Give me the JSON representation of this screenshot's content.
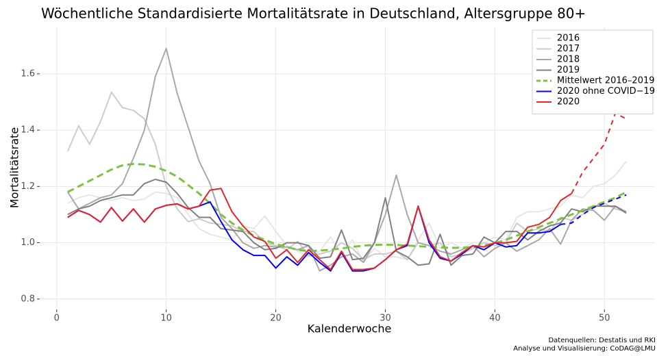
{
  "chart_data": {
    "type": "line",
    "title": "Wöchentliche Standardisierte Mortalitätsrate in Deutschland, Altersgruppe 80+",
    "x_label": "Kalenderwoche",
    "y_label": "Mortalitätsrate",
    "caption": [
      "Datenquellen: Destatis und RKI",
      "Analyse und Visualisierung: CoDAG@LMU"
    ],
    "xlim": [
      -1.55,
      54.55
    ],
    "ylim": [
      0.763,
      1.765
    ],
    "xticks": [
      0,
      10,
      20,
      30,
      40,
      50
    ],
    "yticks": [
      0.8,
      {
        "value": 1,
        "label": "1.0"
      },
      1.2,
      1.4,
      1.6
    ],
    "grid": true,
    "legend_position": "top-right",
    "x": [
      1,
      2,
      3,
      4,
      5,
      6,
      7,
      8,
      9,
      10,
      11,
      12,
      13,
      14,
      15,
      16,
      17,
      18,
      19,
      20,
      21,
      22,
      23,
      24,
      25,
      26,
      27,
      28,
      29,
      30,
      31,
      32,
      33,
      34,
      35,
      36,
      37,
      38,
      39,
      40,
      41,
      42,
      43,
      44,
      45,
      46,
      47,
      48,
      49,
      50,
      51,
      52
    ],
    "series": [
      {
        "name": "2016",
        "color": "#e6e6e6",
        "values": [
          1.14,
          1.16,
          1.17,
          1.16,
          1.15,
          1.16,
          1.15,
          1.155,
          1.18,
          1.175,
          1.16,
          1.1,
          1.05,
          1.03,
          1.02,
          1.01,
          1.06,
          1.05,
          1.095,
          1.04,
          0.99,
          0.97,
          0.95,
          0.97,
          1.02,
          0.96,
          1.01,
          0.93,
          0.98,
          0.95,
          0.95,
          0.94,
          1.01,
          1.07,
          0.98,
          1.0,
          0.98,
          1.0,
          1.0,
          1.02,
          1.01,
          1.09,
          1.11,
          1.11,
          1.12,
          1.13,
          1.17,
          1.16,
          1.2,
          1.21,
          1.24,
          1.29
        ]
      },
      {
        "name": "2017",
        "color": "#cccccc",
        "values": [
          1.325,
          1.415,
          1.35,
          1.43,
          1.535,
          1.48,
          1.47,
          1.44,
          1.35,
          1.2,
          1.12,
          1.075,
          1.085,
          1.07,
          1.065,
          1.06,
          1.04,
          1.04,
          1.0,
          0.99,
          0.975,
          1.005,
          0.955,
          0.96,
          0.97,
          1.0,
          0.98,
          0.94,
          0.96,
          0.96,
          0.97,
          0.94,
          1.0,
          0.99,
          1.0,
          0.95,
          0.96,
          0.98,
          1.0,
          0.99,
          1.0,
          1.07,
          1.04,
          1.05,
          1.04,
          1.09,
          1.08,
          1.1,
          1.13,
          1.14,
          1.12,
          1.11
        ]
      },
      {
        "name": "2018",
        "color": "#a8a8a8",
        "values": [
          1.18,
          1.12,
          1.14,
          1.16,
          1.17,
          1.21,
          1.3,
          1.4,
          1.59,
          1.69,
          1.53,
          1.41,
          1.29,
          1.21,
          1.09,
          1.05,
          1.0,
          0.98,
          0.99,
          0.985,
          0.985,
          0.975,
          0.99,
          0.9,
          0.92,
          0.95,
          0.96,
          0.93,
          1.0,
          1.1,
          1.24,
          1.1,
          1.0,
          0.99,
          0.97,
          0.96,
          0.975,
          0.99,
          0.95,
          0.98,
          1.0,
          0.97,
          0.99,
          1.01,
          1.05,
          0.995,
          1.08,
          1.12,
          1.115,
          1.08,
          1.13,
          1.11
        ]
      },
      {
        "name": "2019",
        "color": "#808080",
        "values": [
          1.1,
          1.12,
          1.13,
          1.15,
          1.16,
          1.17,
          1.17,
          1.21,
          1.225,
          1.215,
          1.175,
          1.125,
          1.09,
          1.09,
          1.05,
          1.045,
          1.04,
          1.0,
          0.975,
          0.98,
          1.0,
          1.0,
          0.99,
          0.945,
          0.95,
          1.045,
          0.94,
          0.945,
          1.0,
          1.16,
          0.97,
          0.95,
          0.92,
          0.925,
          1.03,
          0.92,
          0.955,
          0.96,
          1.02,
          1.0,
          1.04,
          1.04,
          1.01,
          1.04,
          1.06,
          1.07,
          1.12,
          1.11,
          1.13,
          1.13,
          1.13,
          1.105
        ]
      },
      {
        "name": "Mittelwert 2016–2019",
        "color": "#7dc242",
        "dashed": true,
        "values": [
          1.18,
          1.2,
          1.22,
          1.24,
          1.26,
          1.275,
          1.28,
          1.278,
          1.27,
          1.255,
          1.235,
          1.205,
          1.175,
          1.14,
          1.1,
          1.07,
          1.045,
          1.025,
          1.01,
          0.995,
          0.985,
          0.975,
          0.97,
          0.972,
          0.975,
          0.98,
          0.985,
          0.99,
          0.992,
          0.993,
          0.992,
          0.99,
          0.988,
          0.985,
          0.983,
          0.982,
          0.982,
          0.985,
          0.99,
          0.998,
          1.01,
          1.025,
          1.04,
          1.055,
          1.07,
          1.085,
          1.1,
          1.115,
          1.13,
          1.145,
          1.16,
          1.18
        ]
      },
      {
        "name": "2020 ohne COVID−19",
        "color": "#0000ff",
        "dashed_from": 46,
        "values": [
          1.09,
          1.115,
          1.1,
          1.073,
          1.125,
          1.077,
          1.12,
          1.073,
          1.12,
          1.133,
          1.138,
          1.12,
          1.13,
          1.145,
          1.075,
          1.01,
          0.975,
          0.955,
          0.955,
          0.91,
          0.95,
          0.92,
          0.965,
          0.93,
          0.9,
          0.965,
          0.9,
          0.9,
          0.91,
          0.94,
          0.975,
          0.99,
          1.13,
          1.0,
          0.945,
          0.935,
          0.96,
          0.99,
          0.975,
          1.0,
          0.985,
          0.99,
          1.035,
          1.035,
          1.04,
          1.065,
          1.07,
          1.1,
          1.125,
          1.14,
          1.155,
          1.17
        ]
      },
      {
        "name": "2020",
        "color": "#e3262a",
        "dashed_from": 47,
        "values": [
          1.09,
          1.115,
          1.1,
          1.073,
          1.125,
          1.077,
          1.12,
          1.073,
          1.12,
          1.133,
          1.138,
          1.12,
          1.13,
          1.187,
          1.193,
          1.11,
          1.06,
          1.02,
          1.005,
          0.945,
          0.975,
          0.93,
          0.975,
          0.94,
          0.905,
          0.97,
          0.905,
          0.905,
          0.91,
          0.94,
          0.975,
          0.995,
          1.13,
          1.01,
          0.95,
          0.935,
          0.965,
          0.99,
          0.985,
          1.0,
          1.0,
          1.005,
          1.055,
          1.065,
          1.09,
          1.15,
          1.175,
          1.25,
          1.3,
          1.35,
          1.46,
          1.44
        ]
      }
    ]
  }
}
